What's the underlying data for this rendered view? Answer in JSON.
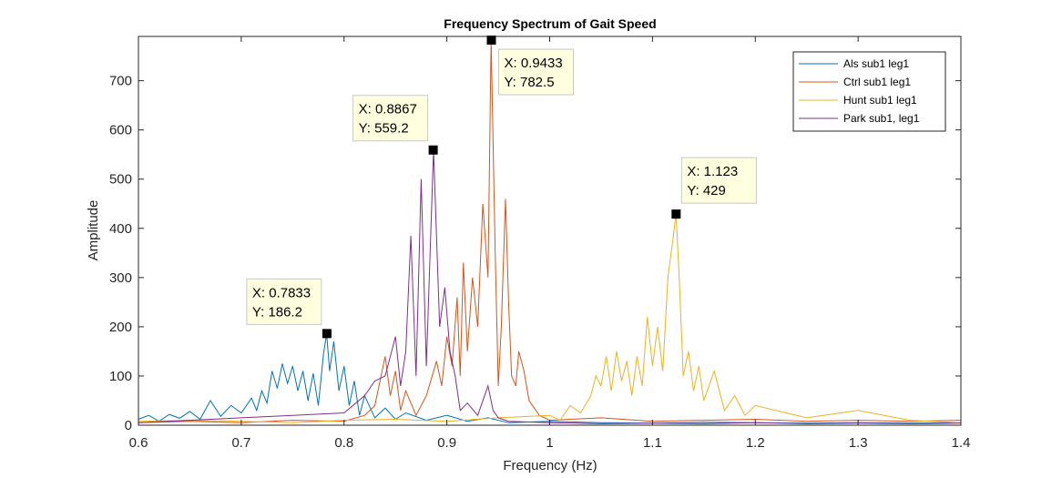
{
  "chart_data": {
    "type": "line",
    "title": "Frequency Spectrum of Gait Speed",
    "xlabel": "Frequency (Hz)",
    "ylabel": "Amplitude",
    "xlim": [
      0.6,
      1.4
    ],
    "ylim": [
      0,
      790
    ],
    "xticks": [
      0.6,
      0.7,
      0.8,
      0.9,
      1,
      1.1,
      1.2,
      1.3,
      1.4
    ],
    "xtick_labels": [
      "0.6",
      "0.7",
      "0.8",
      "0.9",
      "1",
      "1.1",
      "1.2",
      "1.3",
      "1.4"
    ],
    "yticks": [
      0,
      100,
      200,
      300,
      400,
      500,
      600,
      700
    ],
    "ytick_labels": [
      "0",
      "100",
      "200",
      "300",
      "400",
      "500",
      "600",
      "700"
    ],
    "grid": false,
    "legend_position": "top-right",
    "series": [
      {
        "name": "Als sub1 leg1",
        "color": "#0072BD",
        "points": [
          [
            0.6,
            12
          ],
          [
            0.61,
            20
          ],
          [
            0.62,
            8
          ],
          [
            0.63,
            22
          ],
          [
            0.64,
            14
          ],
          [
            0.65,
            28
          ],
          [
            0.66,
            12
          ],
          [
            0.67,
            50
          ],
          [
            0.68,
            18
          ],
          [
            0.69,
            40
          ],
          [
            0.7,
            25
          ],
          [
            0.71,
            55
          ],
          [
            0.715,
            30
          ],
          [
            0.72,
            70
          ],
          [
            0.725,
            45
          ],
          [
            0.73,
            110
          ],
          [
            0.735,
            75
          ],
          [
            0.74,
            125
          ],
          [
            0.745,
            85
          ],
          [
            0.75,
            120
          ],
          [
            0.755,
            70
          ],
          [
            0.76,
            110
          ],
          [
            0.765,
            50
          ],
          [
            0.77,
            105
          ],
          [
            0.775,
            40
          ],
          [
            0.78,
            145
          ],
          [
            0.783,
            186.2
          ],
          [
            0.786,
            110
          ],
          [
            0.79,
            170
          ],
          [
            0.795,
            70
          ],
          [
            0.8,
            120
          ],
          [
            0.805,
            40
          ],
          [
            0.81,
            90
          ],
          [
            0.815,
            20
          ],
          [
            0.82,
            60
          ],
          [
            0.83,
            15
          ],
          [
            0.84,
            35
          ],
          [
            0.85,
            12
          ],
          [
            0.86,
            25
          ],
          [
            0.88,
            10
          ],
          [
            0.9,
            20
          ],
          [
            0.92,
            8
          ],
          [
            0.94,
            15
          ],
          [
            0.96,
            5
          ],
          [
            1.0,
            8
          ],
          [
            1.05,
            5
          ],
          [
            1.1,
            4
          ],
          [
            1.15,
            6
          ],
          [
            1.2,
            5
          ],
          [
            1.25,
            4
          ],
          [
            1.3,
            5
          ],
          [
            1.35,
            4
          ],
          [
            1.4,
            5
          ]
        ]
      },
      {
        "name": "Ctrl sub1 leg1",
        "color": "#D95319",
        "points": [
          [
            0.6,
            5
          ],
          [
            0.65,
            8
          ],
          [
            0.7,
            5
          ],
          [
            0.75,
            10
          ],
          [
            0.8,
            8
          ],
          [
            0.82,
            20
          ],
          [
            0.83,
            40
          ],
          [
            0.84,
            140
          ],
          [
            0.845,
            60
          ],
          [
            0.85,
            110
          ],
          [
            0.855,
            30
          ],
          [
            0.86,
            70
          ],
          [
            0.87,
            20
          ],
          [
            0.88,
            60
          ],
          [
            0.89,
            130
          ],
          [
            0.895,
            80
          ],
          [
            0.9,
            180
          ],
          [
            0.905,
            120
          ],
          [
            0.91,
            260
          ],
          [
            0.913,
            100
          ],
          [
            0.916,
            330
          ],
          [
            0.92,
            150
          ],
          [
            0.925,
            300
          ],
          [
            0.93,
            200
          ],
          [
            0.935,
            450
          ],
          [
            0.94,
            300
          ],
          [
            0.943,
            782.5
          ],
          [
            0.947,
            350
          ],
          [
            0.95,
            80
          ],
          [
            0.953,
            200
          ],
          [
            0.957,
            460
          ],
          [
            0.96,
            250
          ],
          [
            0.963,
            100
          ],
          [
            0.967,
            80
          ],
          [
            0.97,
            150
          ],
          [
            0.975,
            110
          ],
          [
            0.98,
            50
          ],
          [
            0.99,
            20
          ],
          [
            1.0,
            10
          ],
          [
            1.05,
            15
          ],
          [
            1.1,
            8
          ],
          [
            1.15,
            10
          ],
          [
            1.2,
            12
          ],
          [
            1.25,
            8
          ],
          [
            1.3,
            10
          ],
          [
            1.35,
            8
          ],
          [
            1.4,
            10
          ]
        ]
      },
      {
        "name": "Hunt sub1 leg1",
        "color": "#EDB120",
        "points": [
          [
            0.6,
            8
          ],
          [
            0.65,
            10
          ],
          [
            0.7,
            8
          ],
          [
            0.75,
            5
          ],
          [
            0.8,
            10
          ],
          [
            0.85,
            12
          ],
          [
            0.9,
            8
          ],
          [
            0.95,
            15
          ],
          [
            1.0,
            20
          ],
          [
            1.01,
            10
          ],
          [
            1.02,
            40
          ],
          [
            1.03,
            25
          ],
          [
            1.04,
            60
          ],
          [
            1.045,
            100
          ],
          [
            1.05,
            80
          ],
          [
            1.055,
            140
          ],
          [
            1.06,
            70
          ],
          [
            1.065,
            150
          ],
          [
            1.07,
            90
          ],
          [
            1.075,
            130
          ],
          [
            1.08,
            60
          ],
          [
            1.085,
            140
          ],
          [
            1.09,
            80
          ],
          [
            1.095,
            220
          ],
          [
            1.1,
            120
          ],
          [
            1.105,
            200
          ],
          [
            1.11,
            110
          ],
          [
            1.115,
            300
          ],
          [
            1.12,
            380
          ],
          [
            1.123,
            429
          ],
          [
            1.126,
            300
          ],
          [
            1.13,
            100
          ],
          [
            1.135,
            150
          ],
          [
            1.14,
            70
          ],
          [
            1.145,
            120
          ],
          [
            1.15,
            50
          ],
          [
            1.16,
            110
          ],
          [
            1.17,
            30
          ],
          [
            1.18,
            60
          ],
          [
            1.19,
            20
          ],
          [
            1.2,
            40
          ],
          [
            1.25,
            15
          ],
          [
            1.3,
            30
          ],
          [
            1.35,
            10
          ],
          [
            1.4,
            5
          ]
        ]
      },
      {
        "name": "Park sub1, leg1",
        "color": "#7E2F8E",
        "points": [
          [
            0.6,
            5
          ],
          [
            0.65,
            10
          ],
          [
            0.7,
            15
          ],
          [
            0.75,
            20
          ],
          [
            0.8,
            25
          ],
          [
            0.82,
            60
          ],
          [
            0.83,
            90
          ],
          [
            0.84,
            100
          ],
          [
            0.85,
            180
          ],
          [
            0.855,
            80
          ],
          [
            0.86,
            150
          ],
          [
            0.865,
            385
          ],
          [
            0.87,
            100
          ],
          [
            0.875,
            500
          ],
          [
            0.88,
            120
          ],
          [
            0.887,
            559.2
          ],
          [
            0.893,
            200
          ],
          [
            0.898,
            280
          ],
          [
            0.903,
            150
          ],
          [
            0.908,
            100
          ],
          [
            0.913,
            30
          ],
          [
            0.92,
            45
          ],
          [
            0.93,
            20
          ],
          [
            0.94,
            80
          ],
          [
            0.945,
            30
          ],
          [
            0.95,
            15
          ],
          [
            0.96,
            8
          ],
          [
            1.0,
            5
          ],
          [
            1.05,
            3
          ],
          [
            1.1,
            4
          ],
          [
            1.15,
            3
          ],
          [
            1.2,
            5
          ],
          [
            1.25,
            3
          ],
          [
            1.3,
            4
          ],
          [
            1.35,
            3
          ],
          [
            1.4,
            4
          ]
        ]
      }
    ],
    "datatips": [
      {
        "x": 0.7833,
        "y": 186.2,
        "label_x": "X: 0.7833",
        "label_y": "Y: 186.2",
        "position": "above-left"
      },
      {
        "x": 0.8867,
        "y": 559.2,
        "label_x": "X: 0.8867",
        "label_y": "Y: 559.2",
        "position": "above-left"
      },
      {
        "x": 0.9433,
        "y": 782.5,
        "label_x": "X: 0.9433",
        "label_y": "Y: 782.5",
        "position": "below-right"
      },
      {
        "x": 1.123,
        "y": 429,
        "label_x": "X: 1.123",
        "label_y": "Y: 429",
        "position": "above-right"
      }
    ]
  }
}
